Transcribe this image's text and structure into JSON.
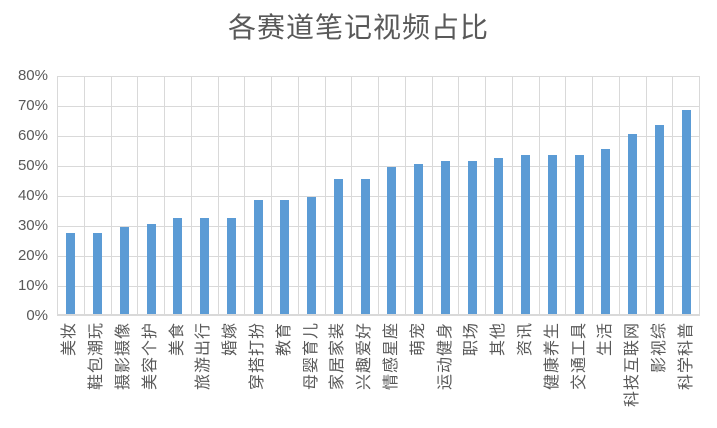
{
  "chart_data": {
    "type": "bar",
    "title": "各赛道笔记视频占比",
    "categories": [
      "美妆",
      "鞋包潮玩",
      "摄影摄像",
      "美容个护",
      "美食",
      "旅游出行",
      "婚嫁",
      "穿搭打扮",
      "教育",
      "母婴育儿",
      "家居家装",
      "兴趣爱好",
      "情感星座",
      "萌宠",
      "运动健身",
      "职场",
      "其他",
      "资讯",
      "健康养生",
      "交通工具",
      "生活",
      "科技互联网",
      "影视综",
      "科学科普"
    ],
    "values": [
      27,
      27,
      29,
      30,
      32,
      32,
      32,
      38,
      38,
      39,
      45,
      45,
      49,
      50,
      51,
      51,
      52,
      53,
      53,
      53,
      55,
      60,
      63,
      68
    ],
    "unit": "%",
    "xlabel": "",
    "ylabel": "",
    "ylim": [
      0,
      80
    ],
    "ytick_interval": 10,
    "ytick_labels": [
      "0%",
      "10%",
      "20%",
      "30%",
      "40%",
      "50%",
      "60%",
      "70%",
      "80%"
    ],
    "grid": "horizontal-and-vertical",
    "legend": "none",
    "colors": {
      "bar": "#5b9bd5",
      "gridline": "#d9d9d9",
      "text": "#595959",
      "background": "#ffffff"
    }
  }
}
